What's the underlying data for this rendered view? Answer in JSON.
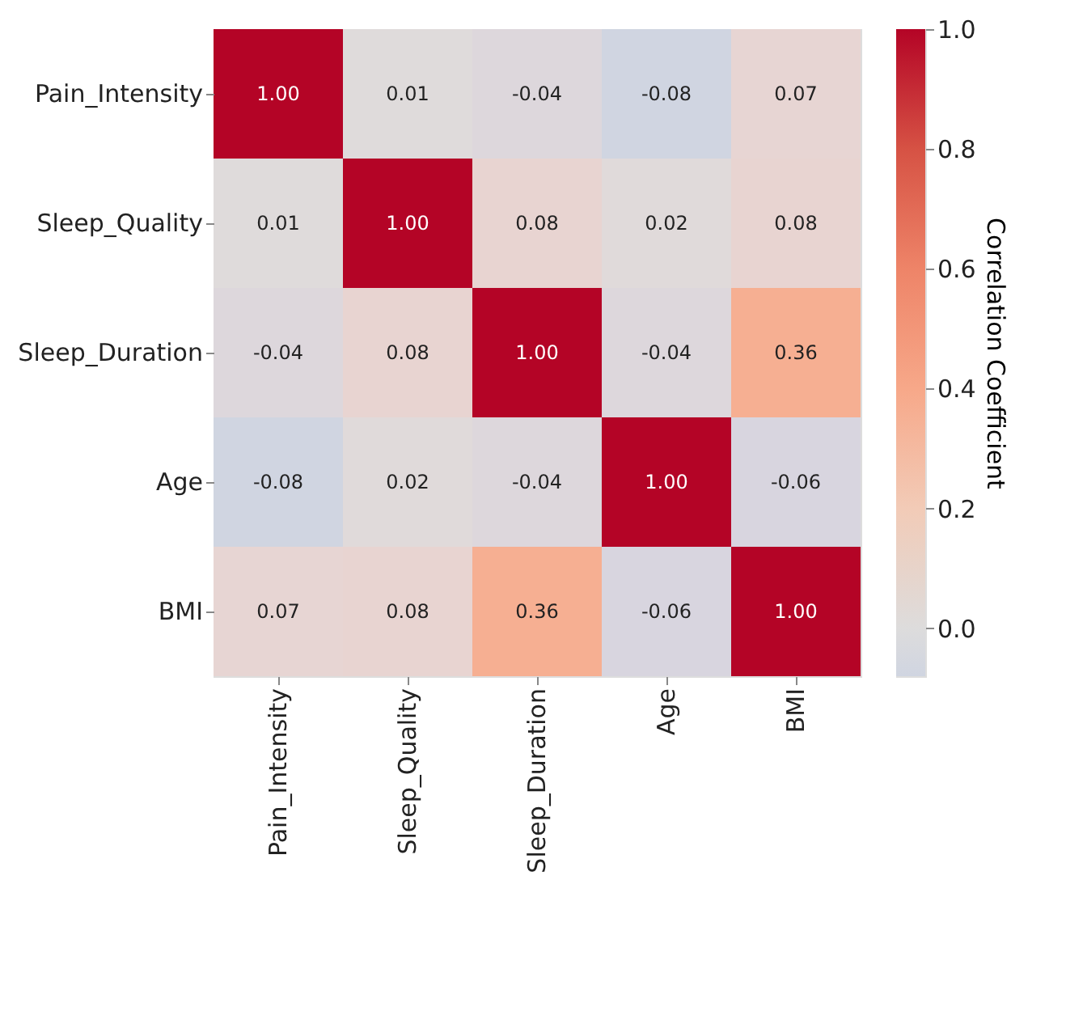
{
  "chart_data": {
    "type": "heatmap",
    "categories": [
      "Pain_Intensity",
      "Sleep_Quality",
      "Sleep_Duration",
      "Age",
      "BMI"
    ],
    "y_categories": [
      "Pain_Intensity",
      "Sleep_Quality",
      "Sleep_Duration",
      "Age",
      "BMI"
    ],
    "cells": [
      [
        1.0,
        0.01,
        -0.04,
        -0.08,
        0.07
      ],
      [
        0.01,
        1.0,
        0.08,
        0.02,
        0.08
      ],
      [
        -0.04,
        0.08,
        1.0,
        -0.04,
        0.36
      ],
      [
        -0.08,
        0.02,
        -0.04,
        1.0,
        -0.06
      ],
      [
        0.07,
        0.08,
        0.36,
        -0.06,
        1.0
      ]
    ],
    "cell_labels": [
      [
        "1.00",
        "0.01",
        "-0.04",
        "-0.08",
        "0.07"
      ],
      [
        "0.01",
        "1.00",
        "0.08",
        "0.02",
        "0.08"
      ],
      [
        "-0.04",
        "0.08",
        "1.00",
        "-0.04",
        "0.36"
      ],
      [
        "-0.08",
        "0.02",
        "-0.04",
        "1.00",
        "-0.06"
      ],
      [
        "0.07",
        "0.08",
        "0.36",
        "-0.06",
        "1.00"
      ]
    ],
    "clim": [
      -0.08,
      1.0
    ],
    "cticks": [
      {
        "value": 0,
        "label": "0.0"
      },
      0.2,
      0.4,
      0.6,
      0.8,
      {
        "value": 1,
        "label": "1.0"
      }
    ],
    "clabel": "Correlation Coefficient",
    "data_labels": true
  }
}
